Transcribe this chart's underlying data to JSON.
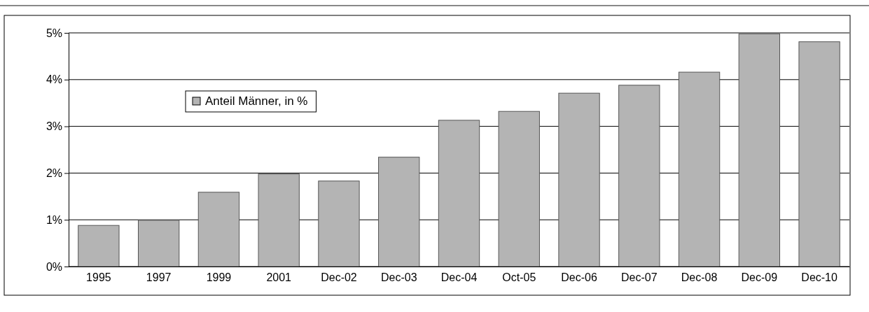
{
  "chart_data": {
    "type": "bar",
    "categories": [
      "1995",
      "1997",
      "1999",
      "2001",
      "Dec-02",
      "Dec-03",
      "Dec-04",
      "Oct-05",
      "Dec-06",
      "Dec-07",
      "Dec-08",
      "Dec-09",
      "Dec-10"
    ],
    "series": [
      {
        "name": "Anteil Männer, in %",
        "color": "#b4b4b4",
        "values": [
          0.88,
          0.99,
          1.59,
          1.98,
          1.83,
          2.34,
          3.13,
          3.32,
          3.71,
          3.88,
          4.16,
          4.98,
          4.81
        ]
      }
    ],
    "ylim": [
      0,
      5
    ],
    "yticks": [
      {
        "value": 0,
        "label": "0%"
      },
      {
        "value": 1,
        "label": "1%"
      },
      {
        "value": 2,
        "label": "2%"
      },
      {
        "value": 3,
        "label": "3%"
      },
      {
        "value": 4,
        "label": "4%"
      },
      {
        "value": 5,
        "label": "5%"
      }
    ],
    "grid": "y",
    "legend": "top left"
  }
}
